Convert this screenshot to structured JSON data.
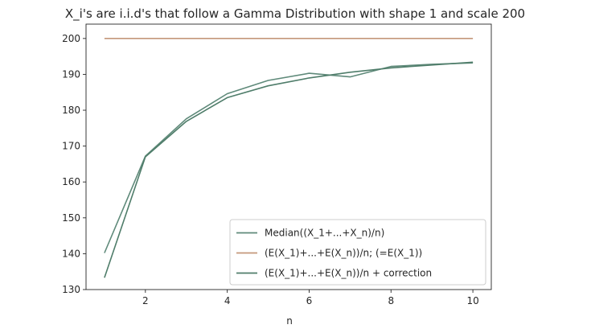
{
  "chart_data": {
    "type": "line",
    "title": "X_i's are i.i.d's that follow a Gamma Distribution with shape 1 and scale 200",
    "xlabel": "n",
    "ylabel": "",
    "xlim": [
      0.55,
      10.45
    ],
    "ylim": [
      130,
      204
    ],
    "xticks": [
      2,
      4,
      6,
      8,
      10
    ],
    "yticks": [
      130,
      140,
      150,
      160,
      170,
      180,
      190,
      200
    ],
    "grid": false,
    "legend_position": "lower-right",
    "series": [
      {
        "name": "Median((X_1+...+X_n)/n)",
        "color": "#5f8a7a",
        "x": [
          1,
          2,
          3,
          4,
          5,
          6,
          7,
          8,
          9,
          10
        ],
        "y": [
          140.2,
          167.2,
          177.6,
          184.6,
          188.3,
          190.3,
          189.3,
          192.2,
          192.8,
          193.2
        ]
      },
      {
        "name": "(E(X_1)+...+E(X_n))/n; (=E(X_1))",
        "color": "#c4977a",
        "x": [
          1,
          2,
          3,
          4,
          5,
          6,
          7,
          8,
          9,
          10
        ],
        "y": [
          200,
          200,
          200,
          200,
          200,
          200,
          200,
          200,
          200,
          200
        ]
      },
      {
        "name": "(E(X_1)+...+E(X_n))/n + correction",
        "color": "#4f7d6a",
        "x": [
          1,
          2,
          3,
          4,
          5,
          6,
          7,
          8,
          9,
          10
        ],
        "y": [
          133.3,
          167.0,
          176.9,
          183.5,
          186.8,
          189.0,
          190.6,
          191.8,
          192.6,
          193.4
        ]
      }
    ]
  }
}
